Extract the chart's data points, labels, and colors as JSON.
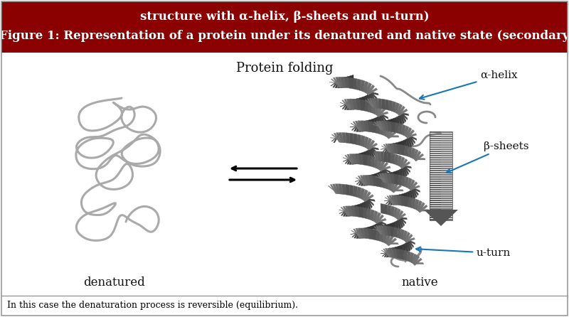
{
  "header_text_line1": "Figure 1: Representation of a protein under its denatured and native state (secondary",
  "header_text_line2": "structure with α-helix, β-sheets and u-turn)",
  "header_bg_color": "#8B0000",
  "header_text_color": "#FFFFFF",
  "main_bg_color": "#FFFFFF",
  "border_color": "#999999",
  "footer_text": "In this case the denaturation process is reversible (equilibrium).",
  "footer_fontsize": 9,
  "label_denatured": "denatured",
  "label_native": "native",
  "label_protein_folding": "Protein folding",
  "annotation_alpha_helix": "α-helix",
  "annotation_beta_sheets": "β-sheets",
  "annotation_u_turn": "u-turn",
  "arrow_color": "#1777B4",
  "label_fontsize": 12,
  "annotation_fontsize": 11,
  "header_fontsize": 12,
  "figure_width": 8.0,
  "figure_height": 4.46,
  "dpi": 100
}
